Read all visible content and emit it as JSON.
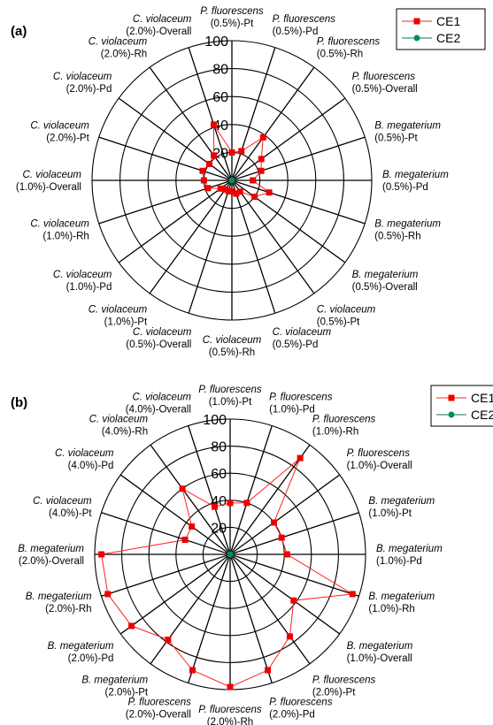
{
  "chart_data": [
    {
      "type": "radar",
      "panel_label": "(a)",
      "rlim": [
        0,
        100
      ],
      "radial_ticks": [
        20,
        40,
        60,
        80,
        100
      ],
      "legend_position": "top-right",
      "categories": [
        {
          "species": "P. fluorescens",
          "cond": "(0.5%)-Pt"
        },
        {
          "species": "P. fluorescens",
          "cond": "(0.5%)-Pd"
        },
        {
          "species": "P. fluorescens",
          "cond": "(0.5%)-Rh"
        },
        {
          "species": "P. fluorescens",
          "cond": "(0.5%)-Overall"
        },
        {
          "species": "B. megaterium",
          "cond": "(0.5%)-Pt"
        },
        {
          "species": "B. megaterium",
          "cond": "(0.5%)-Pd"
        },
        {
          "species": "B. megaterium",
          "cond": "(0.5%)-Rh"
        },
        {
          "species": "B. megaterium",
          "cond": "(0.5%)-Overall"
        },
        {
          "species": "C. violaceum",
          "cond": "(0.5%)-Pt"
        },
        {
          "species": "C. violaceum",
          "cond": "(0.5%)-Pd"
        },
        {
          "species": "C. violaceum",
          "cond": "(0.5%)-Rh"
        },
        {
          "species": "C. violaceum",
          "cond": "(0.5%)-Overall"
        },
        {
          "species": "C. violaceum",
          "cond": "(1.0%)-Pt"
        },
        {
          "species": "C. violaceum",
          "cond": "(1.0%)-Pd"
        },
        {
          "species": "C. violaceum",
          "cond": "(1.0%)-Rh"
        },
        {
          "species": "C. violaceum",
          "cond": "(1.0%)-Overall"
        },
        {
          "species": "C. violaceum",
          "cond": "(2.0%)-Pt"
        },
        {
          "species": "C. violaceum",
          "cond": "(2.0%)-Pd"
        },
        {
          "species": "C. violaceum",
          "cond": "(2.0%)-Rh"
        },
        {
          "species": "C. violaceum",
          "cond": "(2.0%)-Overall"
        }
      ],
      "series": [
        {
          "name": "CE1",
          "color": "#ee0000",
          "marker": "square",
          "values": [
            20,
            22,
            38,
            26,
            22,
            15,
            28,
            20,
            10,
            10,
            8,
            8,
            8,
            10,
            18,
            20,
            22,
            20,
            22,
            42
          ]
        },
        {
          "name": "CE2",
          "color": "#0a8a5a",
          "marker": "circle",
          "values": [
            0,
            0,
            0,
            0,
            0,
            0,
            0,
            0,
            0,
            0,
            0,
            0,
            0,
            0,
            0,
            0,
            0,
            0,
            0,
            0
          ]
        }
      ]
    },
    {
      "type": "radar",
      "panel_label": "(b)",
      "rlim": [
        0,
        100
      ],
      "radial_ticks": [
        20,
        40,
        60,
        80,
        100
      ],
      "legend_position": "top-right",
      "categories": [
        {
          "species": "P. fluorescens",
          "cond": "(1.0%)-Pt"
        },
        {
          "species": "P. fluorescens",
          "cond": "(1.0%)-Pd"
        },
        {
          "species": "P. fluorescens",
          "cond": "(1.0%)-Rh"
        },
        {
          "species": "P. fluorescens",
          "cond": "(1.0%)-Overall"
        },
        {
          "species": "B. megaterium",
          "cond": "(1.0%)-Pt"
        },
        {
          "species": "B. megaterium",
          "cond": "(1.0%)-Pd"
        },
        {
          "species": "B. megaterium",
          "cond": "(1.0%)-Rh"
        },
        {
          "species": "B. megaterium",
          "cond": "(1.0%)-Overall"
        },
        {
          "species": "P. fluorescens",
          "cond": "(2.0%)-Pt"
        },
        {
          "species": "P. fluorescens",
          "cond": "(2.0%)-Pd"
        },
        {
          "species": "P. fluorescens",
          "cond": "(2.0%)-Rh"
        },
        {
          "species": "P. fluorescens",
          "cond": "(2.0%)-Overall"
        },
        {
          "species": "B. megaterium",
          "cond": "(2.0%)-Pt"
        },
        {
          "species": "B. megaterium",
          "cond": "(2.0%)-Pd"
        },
        {
          "species": "B. megaterium",
          "cond": "(2.0%)-Rh"
        },
        {
          "species": "B. megaterium",
          "cond": "(2.0%)-Overall"
        },
        {
          "species": "C. violaceum",
          "cond": "(4.0%)-Pt"
        },
        {
          "species": "C. violaceum",
          "cond": "(4.0%)-Pd"
        },
        {
          "species": "C. violaceum",
          "cond": "(4.0%)-Rh"
        },
        {
          "species": "C. violaceum",
          "cond": "(4.0%)-Overall"
        }
      ],
      "series": [
        {
          "name": "CE1",
          "color": "#ee0000",
          "marker": "square",
          "values": [
            38,
            40,
            88,
            40,
            40,
            42,
            95,
            58,
            75,
            90,
            98,
            90,
            78,
            90,
            95,
            95,
            35,
            35,
            60,
            37
          ]
        },
        {
          "name": "CE2",
          "color": "#0a8a5a",
          "marker": "circle",
          "values": [
            0,
            0,
            0,
            0,
            0,
            0,
            0,
            0,
            0,
            0,
            0,
            0,
            0,
            0,
            0,
            0,
            0,
            0,
            0,
            0
          ]
        }
      ]
    }
  ]
}
